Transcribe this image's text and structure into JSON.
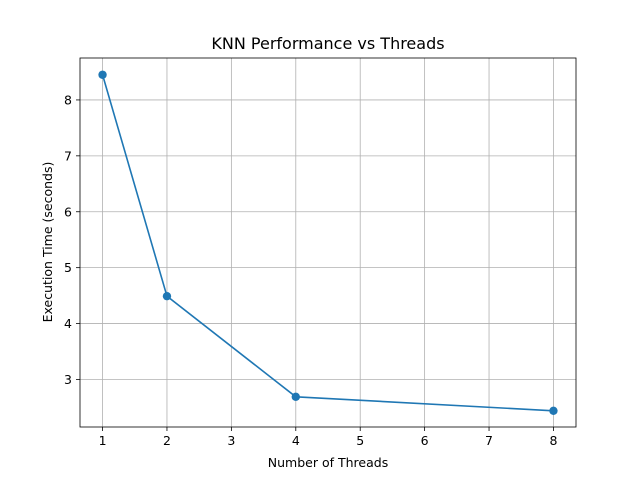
{
  "chart_data": {
    "type": "line",
    "title": "KNN Performance vs Threads",
    "xlabel": "Number of Threads",
    "ylabel": "Execution Time (seconds)",
    "xlim": [
      0.65,
      8.35
    ],
    "ylim": [
      2.15,
      8.75
    ],
    "xticks": [
      1,
      2,
      3,
      4,
      5,
      6,
      7,
      8
    ],
    "yticks": [
      3,
      4,
      5,
      6,
      7,
      8
    ],
    "grid": true,
    "series": [
      {
        "color": "#1f77b4",
        "marker": "circle",
        "x": [
          1,
          2,
          4,
          8
        ],
        "y": [
          8.45,
          4.49,
          2.69,
          2.44
        ]
      }
    ]
  }
}
